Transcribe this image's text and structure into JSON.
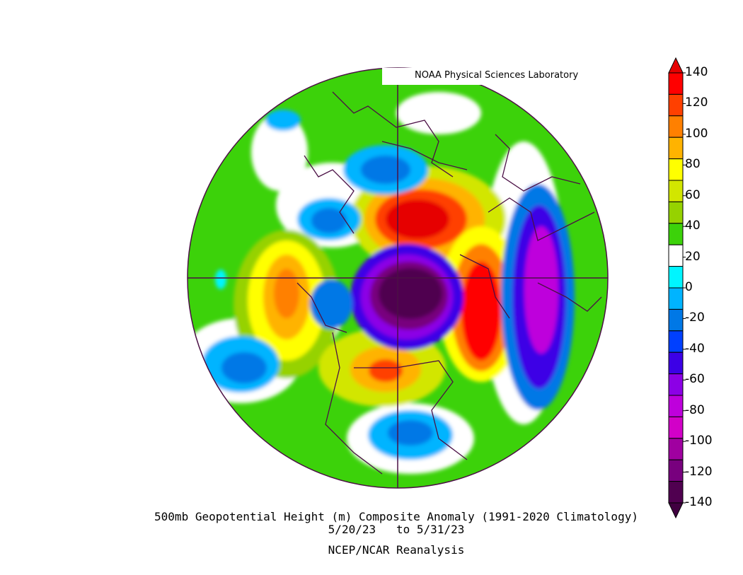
{
  "credit": "NOAA Physical Sciences Laboratory",
  "caption": {
    "line1": "500mb Geopotential Height (m) Composite Anomaly (1991-2020 Climatology)",
    "line2": "5/20/23   to 5/31/23",
    "line3": "NCEP/NCAR Reanalysis"
  },
  "colorbar": {
    "labels": [
      "140",
      "120",
      "100",
      "80",
      "60",
      "40",
      "20",
      "0",
      "-20",
      "-40",
      "-60",
      "-80",
      "-100",
      "-120",
      "-140"
    ],
    "colors": [
      "#ff0000",
      "#ff4000",
      "#ff8000",
      "#ffb300",
      "#ffff00",
      "#d2e600",
      "#96d200",
      "#3cd20a",
      "#ffffff",
      "#00f5ff",
      "#00b4ff",
      "#0078e6",
      "#0040ff",
      "#3c00e6",
      "#8c00e6",
      "#be00dc",
      "#d200c8",
      "#a000a0",
      "#78007e",
      "#500050"
    ],
    "arrow_top_color": "#e60000",
    "arrow_bottom_color": "#400040"
  },
  "map": {
    "projection": "north polar stereographic",
    "ocean_color": "#ffffff",
    "outline_color": "#4b1045"
  }
}
